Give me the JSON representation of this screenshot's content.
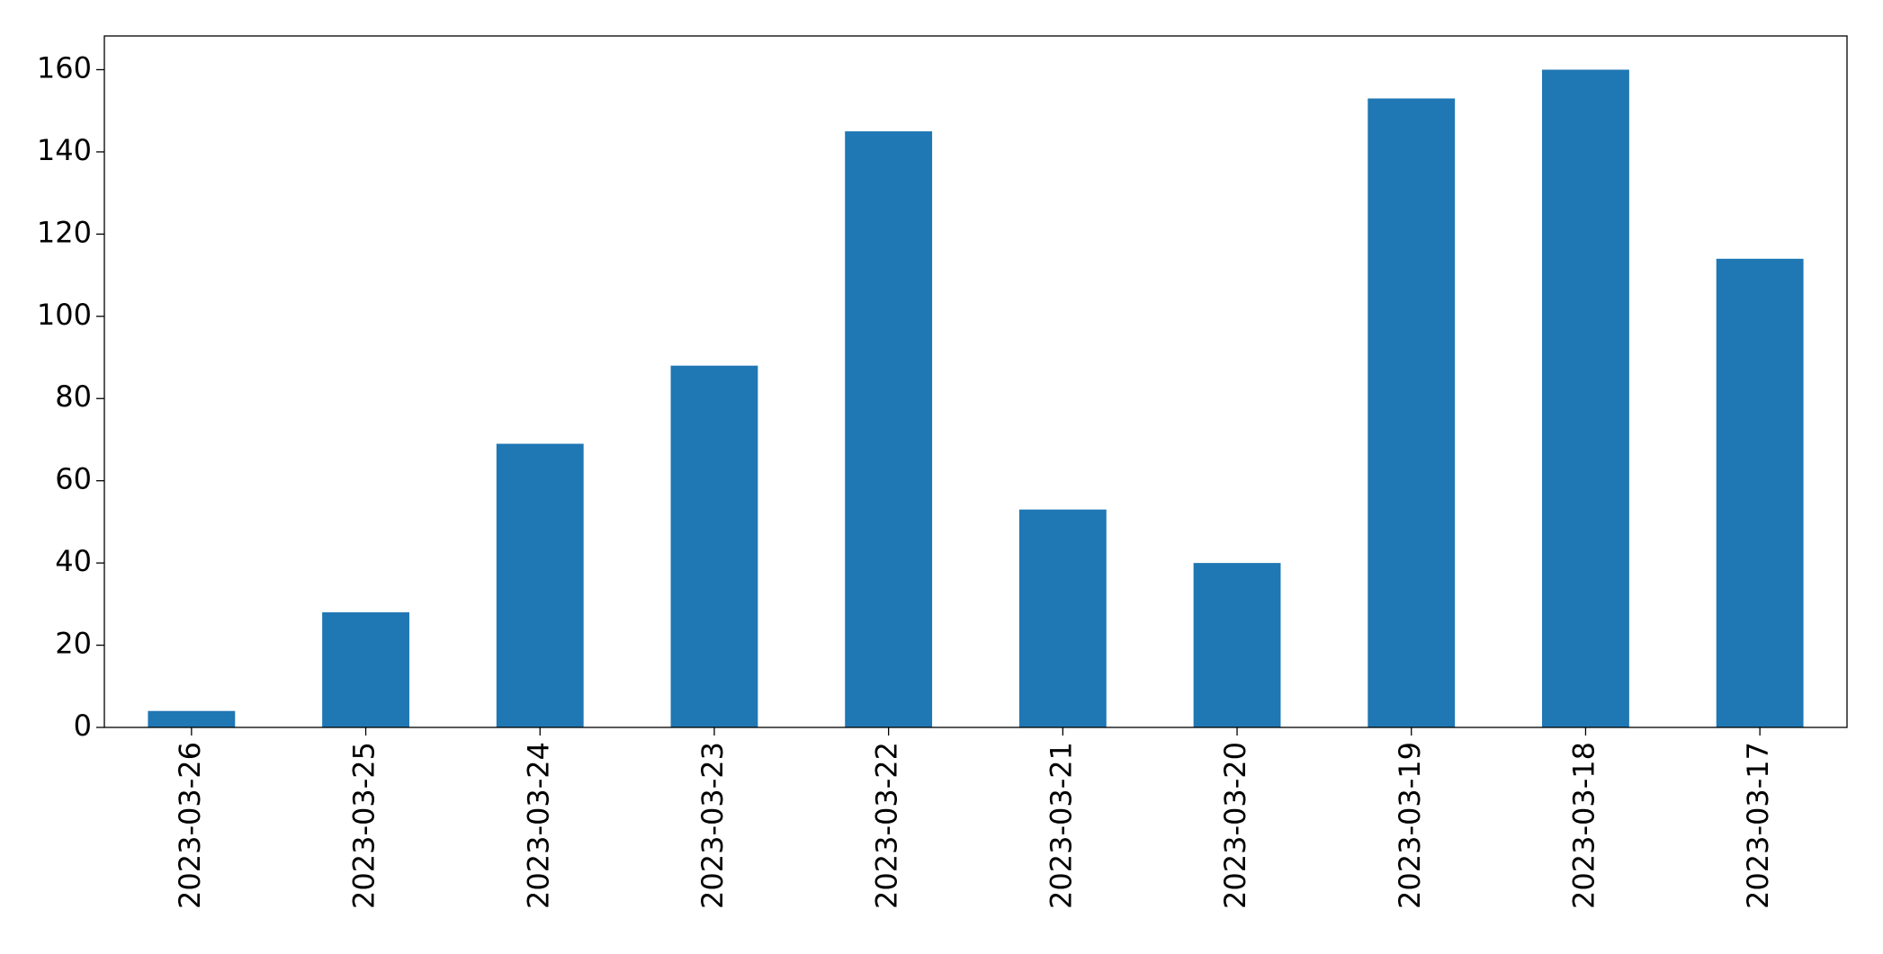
{
  "chart_data": {
    "type": "bar",
    "categories": [
      "2023-03-26",
      "2023-03-25",
      "2023-03-24",
      "2023-03-23",
      "2023-03-22",
      "2023-03-21",
      "2023-03-20",
      "2023-03-19",
      "2023-03-18",
      "2023-03-17"
    ],
    "values": [
      4,
      28,
      69,
      88,
      145,
      53,
      40,
      153,
      160,
      114
    ],
    "color": "#1f77b4",
    "ylim": [
      0,
      168.2
    ],
    "yticks": [
      0,
      20,
      40,
      60,
      80,
      100,
      120,
      140,
      160
    ],
    "grid": false
  }
}
